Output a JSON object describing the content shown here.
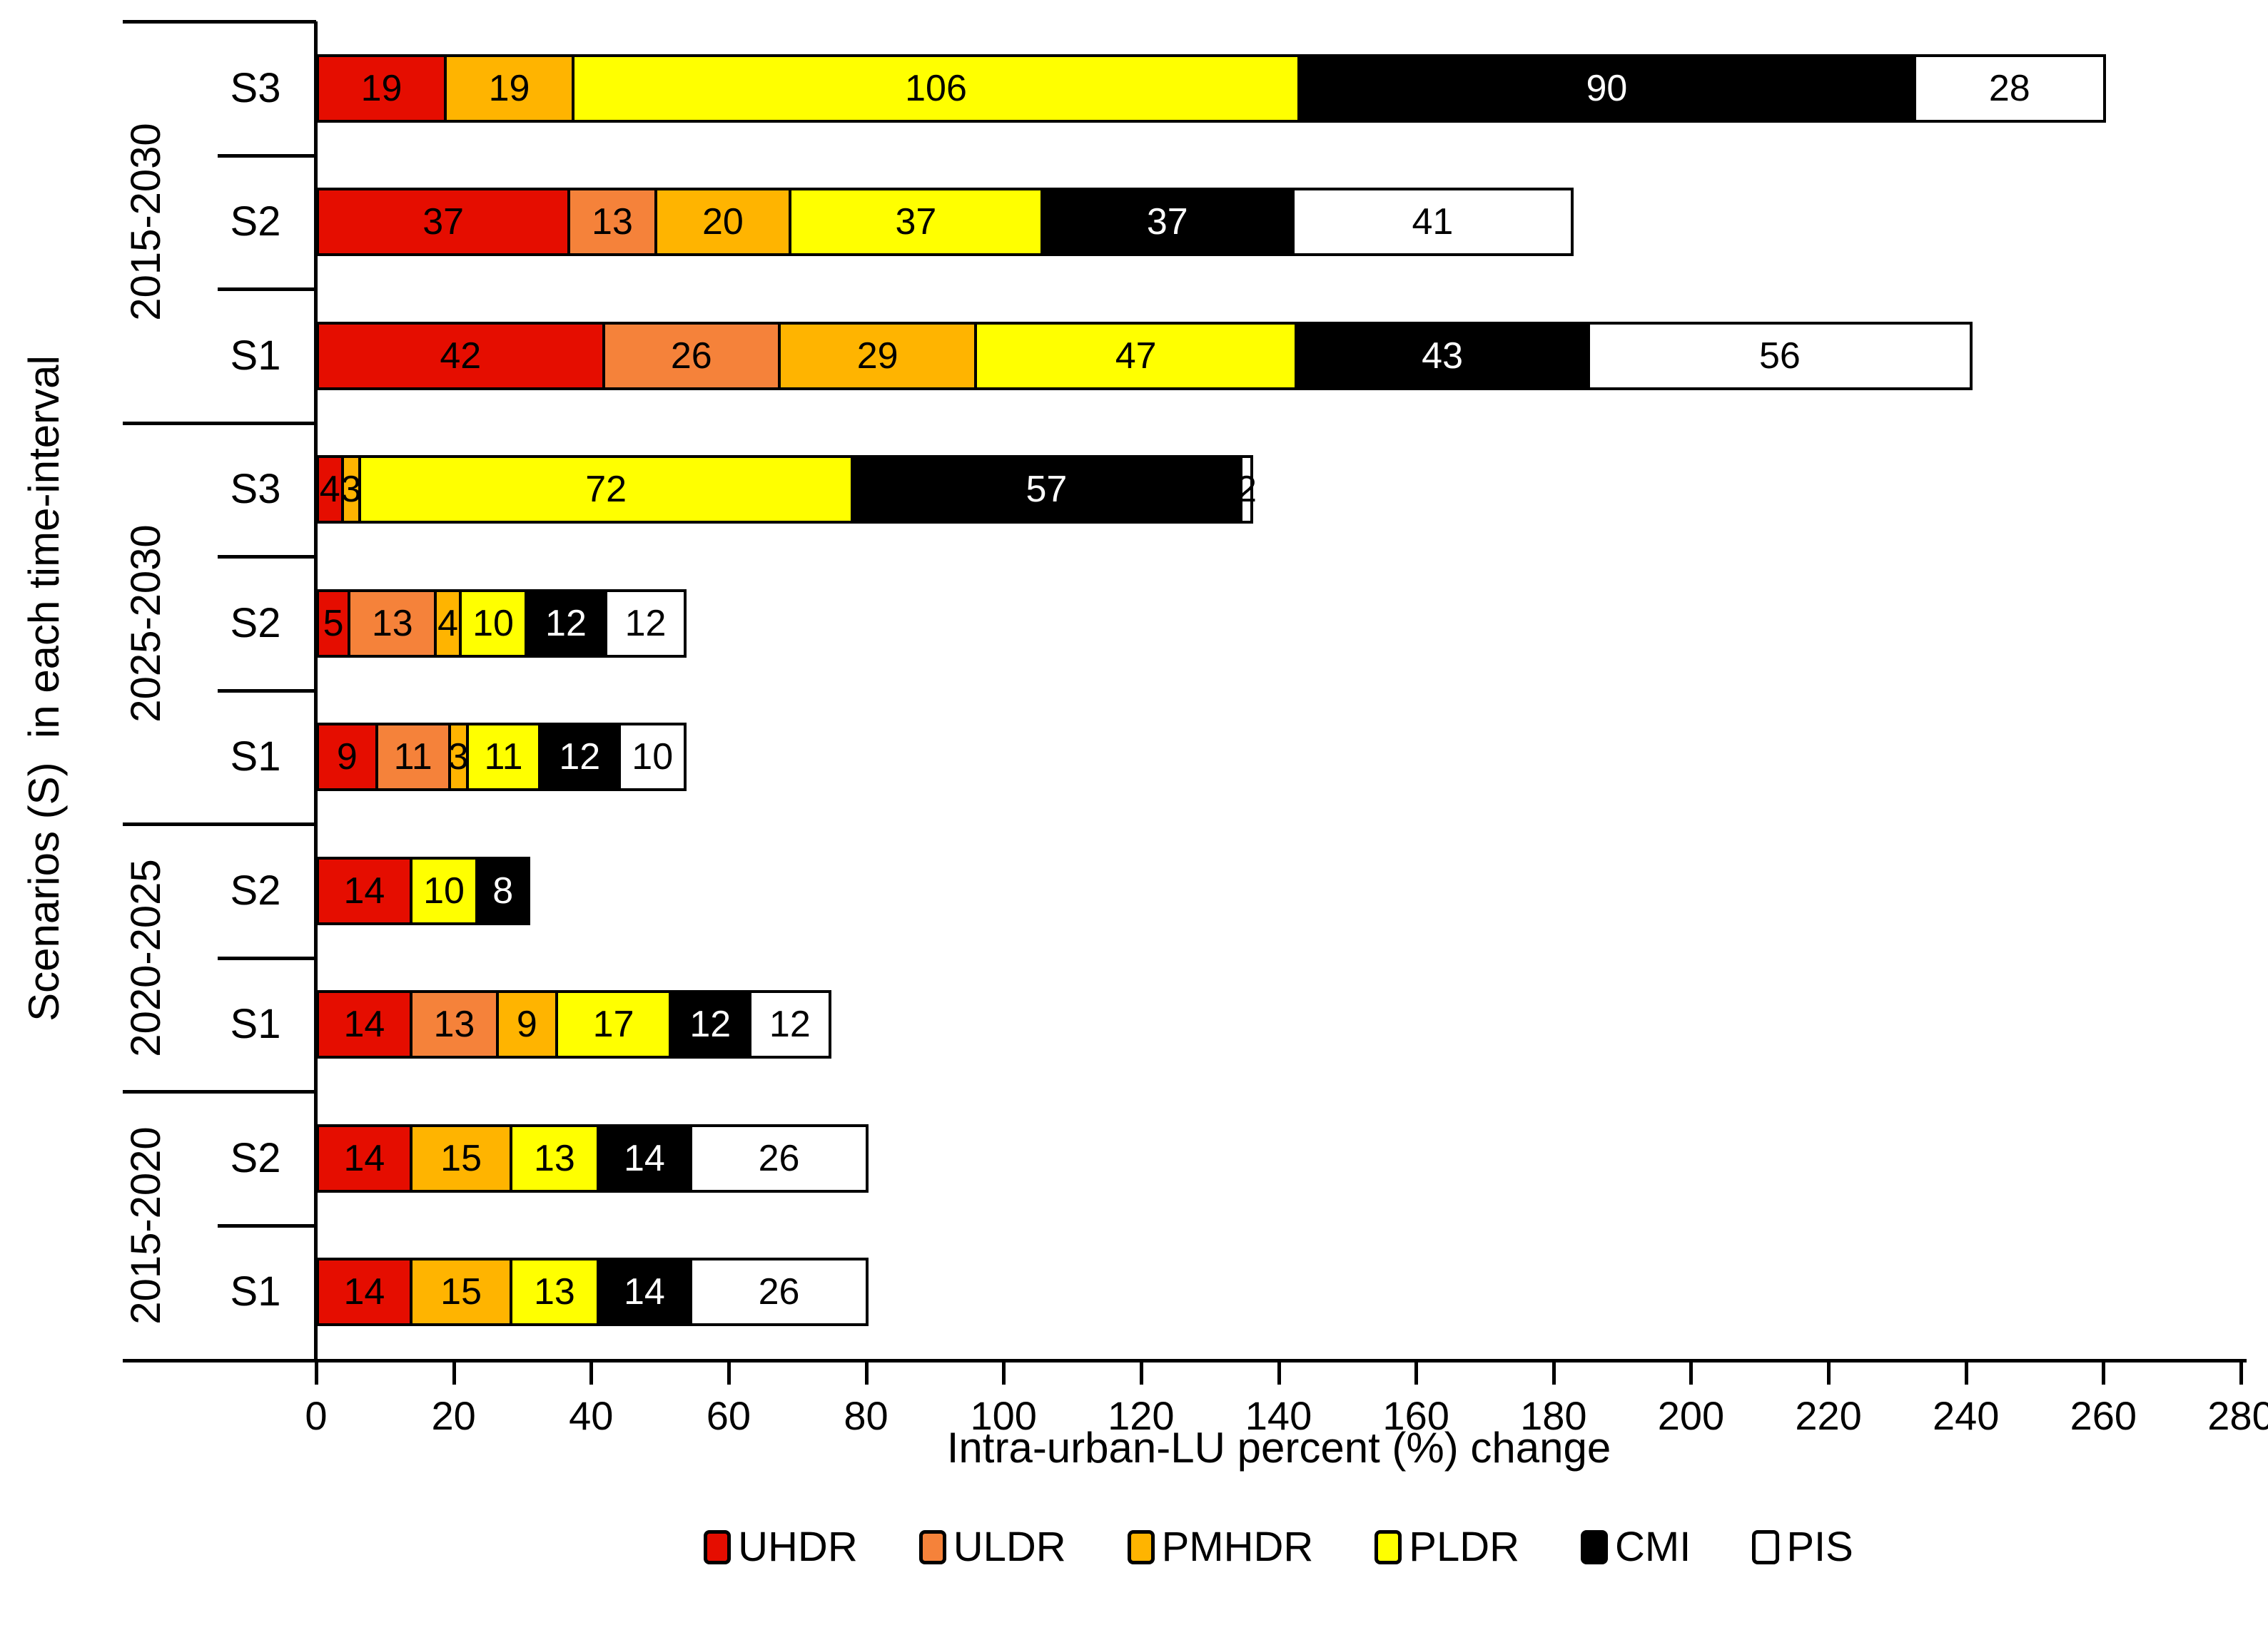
{
  "y_axis_title": "Scenarios (S)  in each time-interval",
  "x_axis_title": "Intra-urban-LU percent (%) change",
  "legend": [
    {
      "label": "UHDR",
      "color": "#e50d00"
    },
    {
      "label": "ULDR",
      "color": "#f5823a"
    },
    {
      "label": "PMHDR",
      "color": "#ffb400"
    },
    {
      "label": "PLDR",
      "color": "#ffff00"
    },
    {
      "label": "CMI",
      "color": "#000000"
    },
    {
      "label": "PIS",
      "color": "#ffffff"
    }
  ],
  "chart_data": {
    "type": "bar",
    "orientation": "horizontal",
    "stacked": true,
    "title": "",
    "xlabel": "Intra-urban-LU percent (%) change",
    "ylabel": "Scenarios (S) in each time-interval",
    "xlim": [
      0,
      280
    ],
    "x_ticks": [
      0,
      20,
      40,
      60,
      80,
      100,
      120,
      140,
      160,
      180,
      200,
      220,
      240,
      260,
      280
    ],
    "grid": false,
    "legend_position": "bottom",
    "series_order": [
      "UHDR",
      "ULDR",
      "PMHDR",
      "PLDR",
      "CMI",
      "PIS"
    ],
    "series_colors": {
      "UHDR": "#e50d00",
      "ULDR": "#f5823a",
      "PMHDR": "#ffb400",
      "PLDR": "#ffff00",
      "CMI": "#000000",
      "PIS": "#ffffff"
    },
    "groups": [
      {
        "interval": "2015-2030",
        "rows": [
          {
            "scenario": "S3",
            "values": {
              "UHDR": 19,
              "ULDR": 0,
              "PMHDR": 19,
              "PLDR": 106,
              "CMI": 90,
              "PIS": 28
            }
          },
          {
            "scenario": "S2",
            "values": {
              "UHDR": 37,
              "ULDR": 13,
              "PMHDR": 20,
              "PLDR": 37,
              "CMI": 37,
              "PIS": 41
            }
          },
          {
            "scenario": "S1",
            "values": {
              "UHDR": 42,
              "ULDR": 26,
              "PMHDR": 29,
              "PLDR": 47,
              "CMI": 43,
              "PIS": 56
            }
          }
        ]
      },
      {
        "interval": "2025-2030",
        "rows": [
          {
            "scenario": "S3",
            "values": {
              "UHDR": 4,
              "ULDR": 0,
              "PMHDR": 3,
              "PLDR": 72,
              "CMI": 57,
              "PIS": 2
            }
          },
          {
            "scenario": "S2",
            "values": {
              "UHDR": 5,
              "ULDR": 13,
              "PMHDR": 4,
              "PLDR": 10,
              "CMI": 12,
              "PIS": 12
            }
          },
          {
            "scenario": "S1",
            "values": {
              "UHDR": 9,
              "ULDR": 11,
              "PMHDR": 3,
              "PLDR": 11,
              "CMI": 12,
              "PIS": 10
            }
          }
        ]
      },
      {
        "interval": "2020-2025",
        "rows": [
          {
            "scenario": "S2",
            "values": {
              "UHDR": 14,
              "ULDR": 0,
              "PMHDR": 0,
              "PLDR": 10,
              "CMI": 8,
              "PIS": 0
            }
          },
          {
            "scenario": "S1",
            "values": {
              "UHDR": 14,
              "ULDR": 13,
              "PMHDR": 9,
              "PLDR": 17,
              "CMI": 12,
              "PIS": 12
            }
          }
        ]
      },
      {
        "interval": "2015-2020",
        "rows": [
          {
            "scenario": "S2",
            "values": {
              "UHDR": 14,
              "ULDR": 0,
              "PMHDR": 15,
              "PLDR": 13,
              "CMI": 14,
              "PIS": 26
            }
          },
          {
            "scenario": "S1",
            "values": {
              "UHDR": 14,
              "ULDR": 0,
              "PMHDR": 15,
              "PLDR": 13,
              "CMI": 14,
              "PIS": 26
            }
          }
        ]
      }
    ]
  }
}
